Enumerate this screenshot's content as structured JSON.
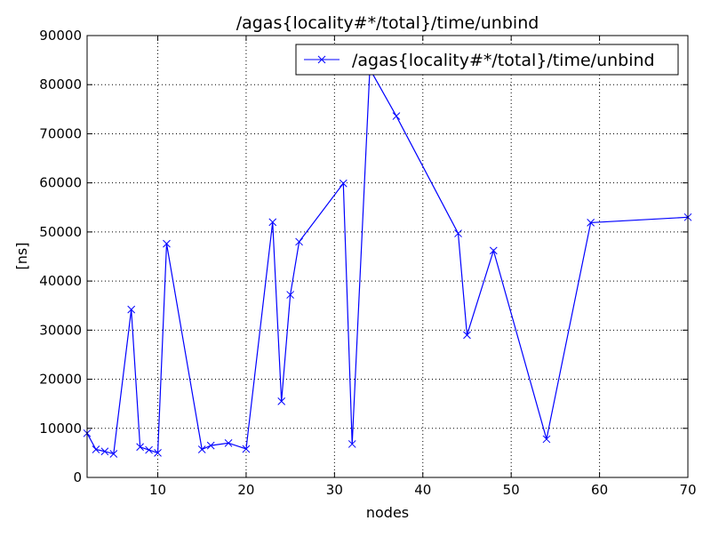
{
  "chart_data": {
    "type": "line",
    "title": "/agas{locality#*/total}/time/unbind",
    "xlabel": "nodes",
    "ylabel": "[ns]",
    "xlim": [
      2,
      70
    ],
    "ylim": [
      0,
      90000
    ],
    "x_ticks": [
      10,
      20,
      30,
      40,
      50,
      60,
      70
    ],
    "y_ticks": [
      0,
      10000,
      20000,
      30000,
      40000,
      50000,
      60000,
      70000,
      80000,
      90000
    ],
    "grid": true,
    "legend_position": "top-right",
    "marker": "x",
    "series": [
      {
        "name": "/agas{locality#*/total}/time/unbind",
        "color": "#0000ff",
        "points": [
          [
            2,
            9000
          ],
          [
            3,
            5700
          ],
          [
            4,
            5300
          ],
          [
            5,
            4800
          ],
          [
            7,
            34200
          ],
          [
            8,
            6200
          ],
          [
            9,
            5600
          ],
          [
            10,
            5000
          ],
          [
            11,
            47600
          ],
          [
            15,
            5700
          ],
          [
            16,
            6500
          ],
          [
            18,
            7000
          ],
          [
            20,
            5800
          ],
          [
            23,
            52000
          ],
          [
            24,
            15500
          ],
          [
            25,
            37200
          ],
          [
            26,
            48000
          ],
          [
            31,
            59900
          ],
          [
            32,
            6800
          ],
          [
            34,
            83200
          ],
          [
            37,
            73600
          ],
          [
            44,
            49700
          ],
          [
            45,
            29000
          ],
          [
            48,
            46200
          ],
          [
            54,
            7800
          ],
          [
            59,
            51900
          ],
          [
            70,
            53000
          ]
        ]
      }
    ]
  }
}
